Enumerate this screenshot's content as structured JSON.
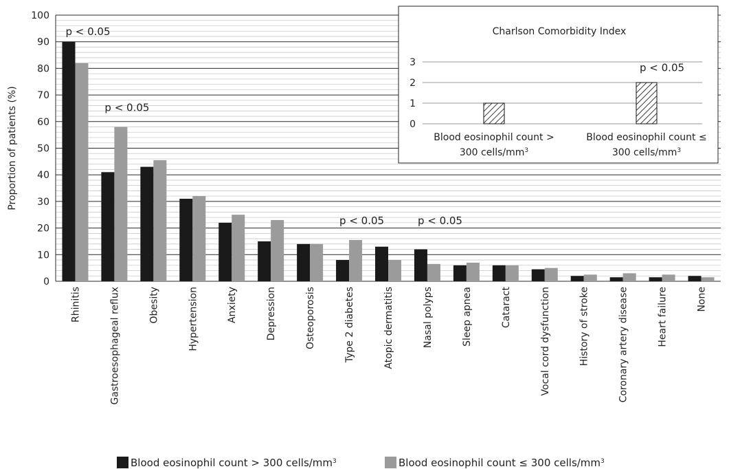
{
  "chart_data": [
    {
      "type": "bar",
      "title": "",
      "xlabel": "",
      "ylabel": "Proportion of patients (%)",
      "ylim": [
        0,
        100
      ],
      "yticks": [
        0,
        10,
        20,
        30,
        40,
        50,
        60,
        70,
        80,
        90,
        100
      ],
      "grid": true,
      "legend_position": "bottom-center",
      "categories": [
        "Rhinitis",
        "Gastroesophageal reflux",
        "Obesity",
        "Hypertension",
        "Anxiety",
        "Depression",
        "Osteoporosis",
        "Type 2 diabetes",
        "Atopic dermatitis",
        "Nasal polyps",
        "Sleep apnea",
        "Cataract",
        "Vocal cord dysfunction",
        "History of stroke",
        "Coronary artery disease",
        "Heart failure",
        "None"
      ],
      "series": [
        {
          "name": "Blood eosinophil count > 300 cells/mm³",
          "color": "#1a1a1a",
          "values": [
            90,
            41,
            43,
            31,
            22,
            15,
            14,
            8,
            13,
            12,
            6,
            6,
            4.5,
            2,
            1.5,
            1.5,
            2
          ]
        },
        {
          "name": "Blood eosinophil count ≤ 300 cells/mm³",
          "color": "#9b9b9b",
          "values": [
            82,
            58,
            45.5,
            32,
            25,
            23,
            14,
            15.5,
            8,
            6.5,
            7,
            6,
            5,
            2.5,
            3,
            2.5,
            1.5
          ]
        }
      ],
      "annotations": [
        {
          "text": "p < 0.05",
          "category": "Rhinitis",
          "value": 92.5
        },
        {
          "text": "p < 0.05",
          "category": "Gastroesophageal reflux",
          "value": 64
        },
        {
          "text": "p < 0.05",
          "category": "Type 2 diabetes",
          "value": 21.5
        },
        {
          "text": "p < 0.05",
          "category": "Nasal polyps",
          "value": 21.5
        }
      ]
    },
    {
      "type": "bar",
      "title": "Charlson Comorbidity Index",
      "ylim": [
        0,
        3
      ],
      "yticks": [
        0,
        1,
        2,
        3
      ],
      "grid": true,
      "pattern": "diagonal-hatch",
      "categories": [
        "Blood eosinophil count > 300 cells/mm³",
        "Blood eosinophil count ≤ 300 cells/mm³"
      ],
      "values": [
        1,
        2
      ],
      "annotations": [
        {
          "text": "p < 0.05",
          "category": "Blood eosinophil count ≤ 300 cells/mm³",
          "value": 2.55
        }
      ]
    }
  ]
}
